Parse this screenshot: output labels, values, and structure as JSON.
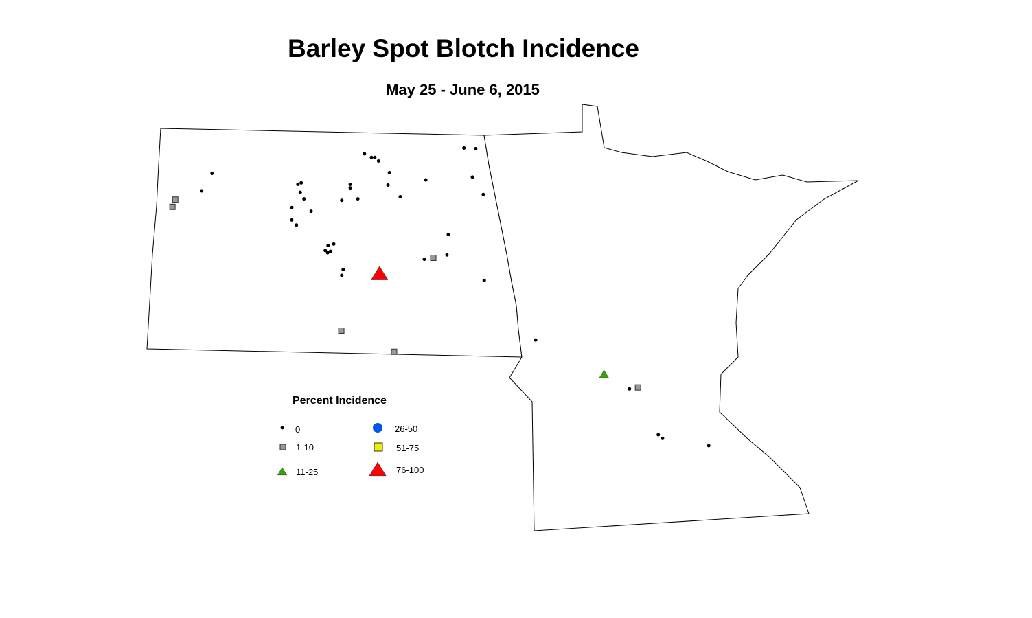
{
  "title": "Barley Spot Blotch Incidence",
  "subtitle": "May 25 - June 6, 2015",
  "legend": {
    "title": "Percent Incidence",
    "items": [
      {
        "label": "0",
        "symbol": "dot",
        "color": "#000000"
      },
      {
        "label": "1-10",
        "symbol": "square",
        "color": "#999999"
      },
      {
        "label": "11-25",
        "symbol": "triangle",
        "color": "#33aa00"
      },
      {
        "label": "26-50",
        "symbol": "circle",
        "color": "#0055ee"
      },
      {
        "label": "51-75",
        "symbol": "square",
        "color": "#eeee00"
      },
      {
        "label": "76-100",
        "symbol": "triangle",
        "color": "#ff0000"
      }
    ]
  },
  "observations": [
    {
      "cat": "0",
      "lon": -99.6,
      "lat": 48.68
    },
    {
      "cat": "0",
      "lon": -99.45,
      "lat": 48.63
    },
    {
      "cat": "0",
      "lon": -99.38,
      "lat": 48.63
    },
    {
      "cat": "0",
      "lon": -99.3,
      "lat": 48.58
    },
    {
      "cat": "0",
      "lon": -99.07,
      "lat": 48.42
    },
    {
      "cat": "0",
      "lon": -97.49,
      "lat": 48.76
    },
    {
      "cat": "0",
      "lon": -97.24,
      "lat": 48.75
    },
    {
      "cat": "0",
      "lon": -102.83,
      "lat": 48.41
    },
    {
      "cat": "0",
      "lon": -103.05,
      "lat": 48.17
    },
    {
      "cat": "0",
      "lon": -101.01,
      "lat": 48.26
    },
    {
      "cat": "0",
      "lon": -100.94,
      "lat": 48.28
    },
    {
      "cat": "0",
      "lon": -100.96,
      "lat": 48.15
    },
    {
      "cat": "0",
      "lon": -100.88,
      "lat": 48.06
    },
    {
      "cat": "0",
      "lon": -101.14,
      "lat": 47.94
    },
    {
      "cat": "0",
      "lon": -100.73,
      "lat": 47.89
    },
    {
      "cat": "0",
      "lon": -101.14,
      "lat": 47.77
    },
    {
      "cat": "0",
      "lon": -101.04,
      "lat": 47.7
    },
    {
      "cat": "0",
      "lon": -99.9,
      "lat": 48.26
    },
    {
      "cat": "0",
      "lon": -99.9,
      "lat": 48.21
    },
    {
      "cat": "0",
      "lon": -100.08,
      "lat": 48.04
    },
    {
      "cat": "0",
      "lon": -99.74,
      "lat": 48.06
    },
    {
      "cat": "0",
      "lon": -99.1,
      "lat": 48.25
    },
    {
      "cat": "0",
      "lon": -98.84,
      "lat": 48.09
    },
    {
      "cat": "0",
      "lon": -98.3,
      "lat": 48.32
    },
    {
      "cat": "0",
      "lon": -97.31,
      "lat": 48.36
    },
    {
      "cat": "0",
      "lon": -97.08,
      "lat": 48.12
    },
    {
      "cat": "0",
      "lon": -100.25,
      "lat": 47.44
    },
    {
      "cat": "0",
      "lon": -100.37,
      "lat": 47.42
    },
    {
      "cat": "0",
      "lon": -100.43,
      "lat": 47.35
    },
    {
      "cat": "0",
      "lon": -100.32,
      "lat": 47.34
    },
    {
      "cat": "0",
      "lon": -100.38,
      "lat": 47.32
    },
    {
      "cat": "0",
      "lon": -97.82,
      "lat": 47.57
    },
    {
      "cat": "0",
      "lon": -97.85,
      "lat": 47.29
    },
    {
      "cat": "0",
      "lon": -98.33,
      "lat": 47.23
    },
    {
      "cat": "0",
      "lon": -100.05,
      "lat": 47.09
    },
    {
      "cat": "0",
      "lon": -100.08,
      "lat": 47.01
    },
    {
      "cat": "0",
      "lon": -97.06,
      "lat": 46.94
    },
    {
      "cat": "0",
      "lon": -95.97,
      "lat": 46.12
    },
    {
      "cat": "0",
      "lon": -93.98,
      "lat": 45.45
    },
    {
      "cat": "0",
      "lon": -93.37,
      "lat": 44.82
    },
    {
      "cat": "0",
      "lon": -93.28,
      "lat": 44.77
    },
    {
      "cat": "0",
      "lon": -92.3,
      "lat": 44.67
    },
    {
      "cat": "1-10",
      "lon": -103.61,
      "lat": 48.05
    },
    {
      "cat": "1-10",
      "lon": -103.67,
      "lat": 47.95
    },
    {
      "cat": "1-10",
      "lon": -98.14,
      "lat": 47.25
    },
    {
      "cat": "1-10",
      "lon": -100.09,
      "lat": 46.25
    },
    {
      "cat": "1-10",
      "lon": -98.97,
      "lat": 45.96
    },
    {
      "cat": "1-10",
      "lon": -93.8,
      "lat": 45.47
    },
    {
      "cat": "11-25",
      "lon": -94.52,
      "lat": 45.65
    },
    {
      "cat": "76-100",
      "lon": -99.28,
      "lat": 47.03
    }
  ]
}
